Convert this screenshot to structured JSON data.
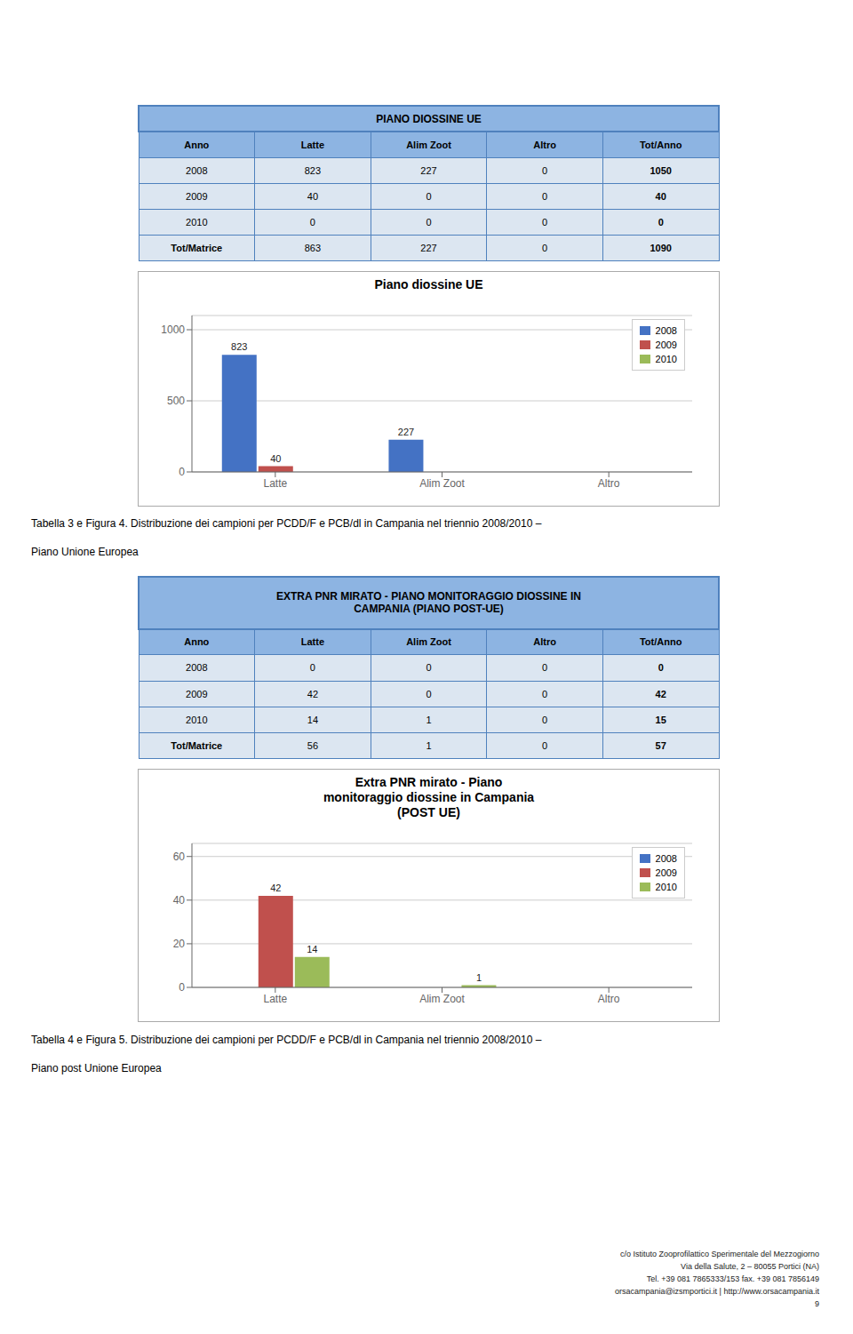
{
  "chart_data": [
    {
      "type": "bar",
      "title": "Piano diossine UE",
      "categories": [
        "Latte",
        "Alim Zoot",
        "Altro"
      ],
      "series": [
        {
          "name": "2008",
          "color": "#4472c4",
          "values": [
            823,
            227,
            0
          ]
        },
        {
          "name": "2009",
          "color": "#c0504d",
          "values": [
            40,
            0,
            0
          ]
        },
        {
          "name": "2010",
          "color": "#9bbb59",
          "values": [
            0,
            0,
            0
          ]
        }
      ],
      "ylim": [
        0,
        1100
      ],
      "yticks": [
        0,
        500,
        1000
      ],
      "grid": true,
      "legend": "upper right",
      "data_labels": true,
      "table": {
        "title": "PIANO DIOSSINE UE",
        "header": [
          "Anno",
          "Latte",
          "Alim Zoot",
          "Altro",
          "Tot/Anno"
        ],
        "rows": [
          [
            "2008",
            "823",
            "227",
            "0",
            "1050"
          ],
          [
            "2009",
            "40",
            "0",
            "0",
            "40"
          ],
          [
            "2010",
            "0",
            "0",
            "0",
            "0"
          ],
          [
            "Tot/Matrice",
            "863",
            "227",
            "0",
            "1090"
          ]
        ]
      },
      "annotations": [
        "Tabella 3 e Figura 4. Distribuzione dei campioni per PCDD/F e PCB/dl in Campania nel triennio 2008/2010 –",
        "Piano Unione Europea"
      ]
    },
    {
      "type": "bar",
      "title": "Extra PNR mirato - Piano\nmonitoraggio diossine in Campania\n(POST UE)",
      "categories": [
        "Latte",
        "Alim Zoot",
        "Altro"
      ],
      "series": [
        {
          "name": "2008",
          "color": "#4472c4",
          "values": [
            0,
            0,
            0
          ]
        },
        {
          "name": "2009",
          "color": "#c0504d",
          "values": [
            42,
            0,
            0
          ]
        },
        {
          "name": "2010",
          "color": "#9bbb59",
          "values": [
            14,
            1,
            0
          ]
        }
      ],
      "ylim": [
        0,
        66
      ],
      "yticks": [
        0,
        20,
        40,
        60
      ],
      "grid": true,
      "legend": "upper right",
      "data_labels": true,
      "table": {
        "title": "EXTRA PNR MIRATO - PIANO MONITORAGGIO DIOSSINE IN\nCAMPANIA (PIANO POST-UE)",
        "header": [
          "Anno",
          "Latte",
          "Alim Zoot",
          "Altro",
          "Tot/Anno"
        ],
        "rows": [
          [
            "2008",
            "0",
            "0",
            "0",
            "0"
          ],
          [
            "2009",
            "42",
            "0",
            "0",
            "42"
          ],
          [
            "2010",
            "14",
            "1",
            "0",
            "15"
          ],
          [
            "Tot/Matrice",
            "56",
            "1",
            "0",
            "57"
          ]
        ]
      },
      "annotations": [
        "Tabella 4 e Figura 5. Distribuzione dei campioni per PCDD/F e PCB/dl in Campania nel triennio 2008/2010 –",
        "Piano post Unione Europea"
      ]
    }
  ],
  "annotations": [
    "c/o Istituto Zooprofilattico Sperimentale del Mezzogiorno",
    "Via della Salute, 2 – 80055 Portici (NA)",
    "Tel. +39 081 7865333/153  fax. +39 081 7856149",
    "orsacampania@izsmportici.it  |  http://www.orsacampania.it",
    "9"
  ]
}
